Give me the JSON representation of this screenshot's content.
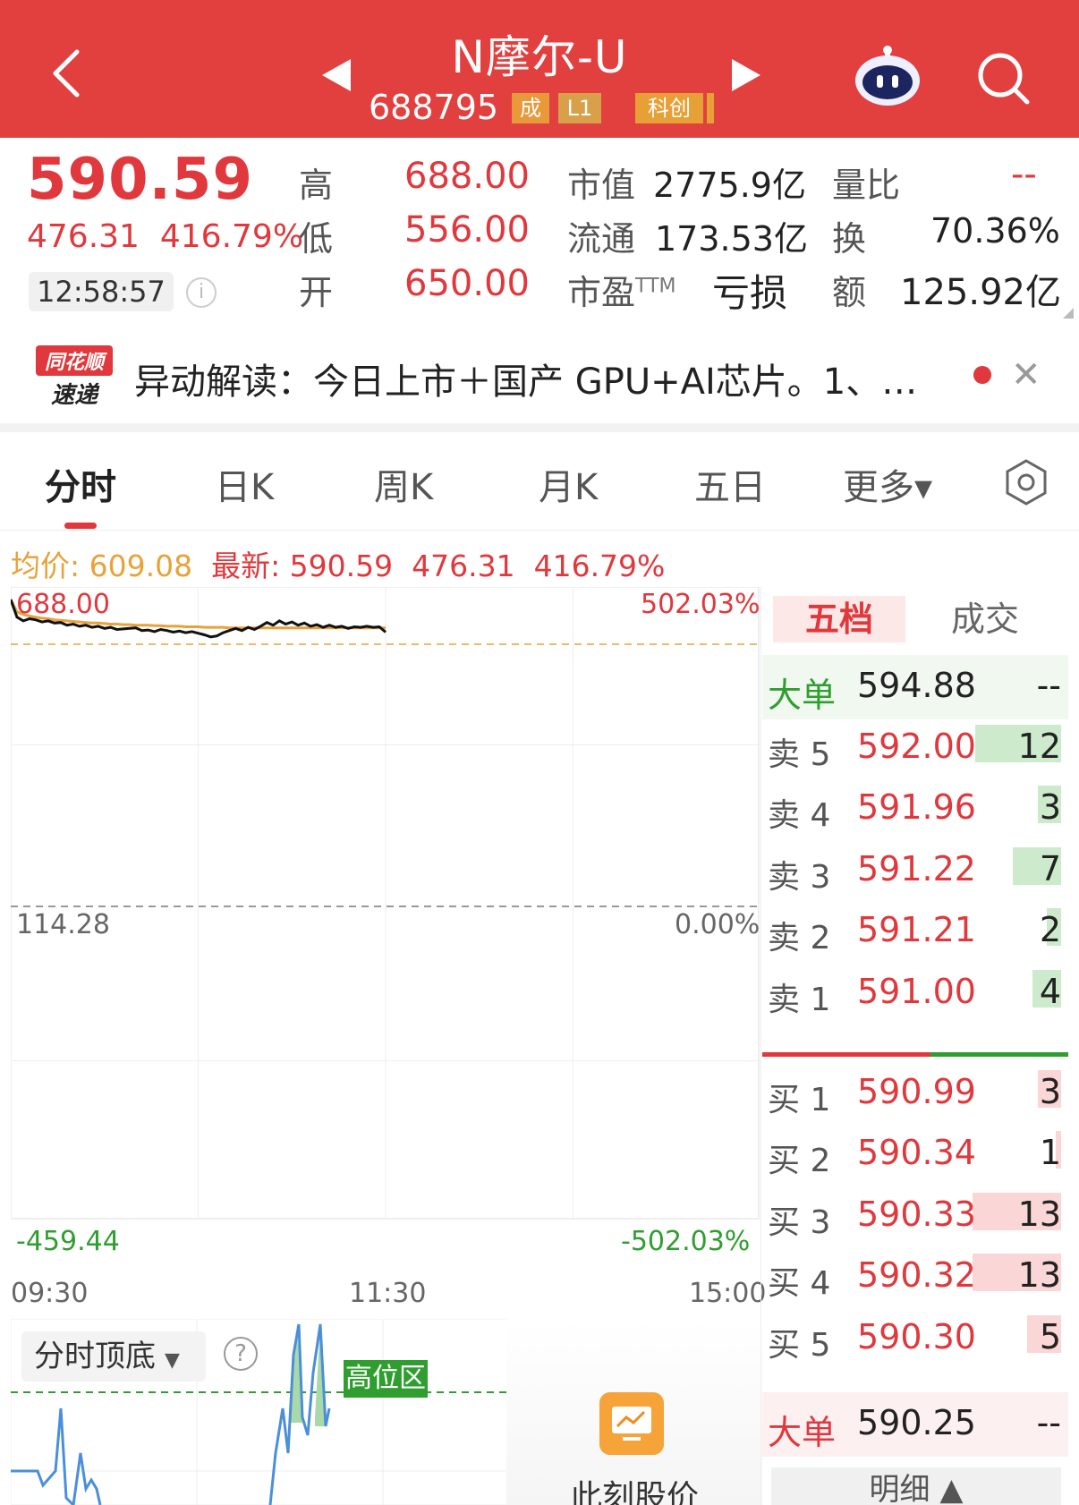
{
  "header": {
    "title": "N摩尔-U",
    "code": "688795",
    "badges": [
      "成",
      "L1",
      "科创"
    ]
  },
  "quote": {
    "price": "590.59",
    "change": "476.31",
    "change_pct": "416.79%",
    "time": "12:58:57",
    "high_label": "高",
    "high": "688.00",
    "low_label": "低",
    "low": "556.00",
    "open_label": "开",
    "open": "650.00",
    "mcap_label": "市值",
    "mcap": "2775.9亿",
    "float_label": "流通",
    "float": "173.53亿",
    "pe_label": "市盈",
    "pe_sup": "TTM",
    "pe": "亏损",
    "vr_label": "量比",
    "vr": "--",
    "turnover_label": "换",
    "turnover": "70.36%",
    "amount_label": "额",
    "amount": "125.92亿"
  },
  "news": {
    "logo_top": "同花顺",
    "logo_bottom": "速递",
    "text": "异动解读：今日上市＋国产 GPU+AI芯片。1、…"
  },
  "tabs": [
    "分时",
    "日K",
    "周K",
    "月K",
    "五日",
    "更多▾"
  ],
  "info_line": {
    "avg_label": "均价: 609.08",
    "latest_label": "最新: 590.59",
    "change": "476.31",
    "pct": "416.79%"
  },
  "chart_data": {
    "type": "line",
    "x_ticks": [
      "09:30",
      "11:30",
      "15:00"
    ],
    "y_left_ticks": [
      "688.00",
      "114.28",
      "-459.44"
    ],
    "y_right_ticks": [
      "502.03%",
      "0.00%",
      "-502.03%"
    ],
    "ylim": [
      -459.44,
      688.0
    ],
    "prev_close": 114.28,
    "series": [
      {
        "values": [
          688.0,
          655,
          648,
          652,
          650,
          646,
          648,
          644,
          645,
          640,
          642,
          638,
          640,
          636,
          638,
          634,
          636,
          632,
          633,
          634,
          635,
          630,
          631,
          628,
          632,
          630,
          627,
          629,
          626,
          628,
          625,
          622,
          618,
          620,
          626,
          630,
          634,
          630,
          636,
          632,
          638,
          645,
          640,
          648,
          642,
          646,
          640,
          644,
          638,
          641,
          636,
          640,
          636,
          638,
          634,
          637,
          636,
          638,
          636,
          637,
          590.59
        ]
      },
      {
        "values": [
          688.0,
          665,
          660,
          657,
          655,
          653,
          652,
          650,
          649,
          648,
          647,
          646,
          645,
          644,
          644,
          643,
          642,
          642,
          641,
          641,
          640,
          640,
          640,
          639,
          639,
          638,
          638,
          638,
          637,
          637,
          637,
          636,
          636,
          636,
          636,
          635,
          635,
          635,
          635,
          635,
          635,
          635,
          635,
          635,
          635,
          635,
          635,
          635,
          635,
          635,
          635,
          635,
          635,
          635,
          635,
          635,
          635,
          635,
          635,
          635,
          609.08
        ]
      }
    ]
  },
  "indicator": {
    "name": "分时顶底",
    "help": "?",
    "zone_label": "高位区"
  },
  "promo": {
    "text": "此刻股价"
  },
  "orderbook": {
    "tab_active": "五档",
    "tab_other": "成交",
    "top_big": {
      "label": "大单",
      "price": "594.88",
      "vol": "--"
    },
    "sells": [
      {
        "label": "卖 5",
        "price": "592.00",
        "vol": "12",
        "bar": 0.3
      },
      {
        "label": "卖 4",
        "price": "591.96",
        "vol": "3",
        "bar": 0.08
      },
      {
        "label": "卖 3",
        "price": "591.22",
        "vol": "7",
        "bar": 0.17
      },
      {
        "label": "卖 2",
        "price": "591.21",
        "vol": "2",
        "bar": 0.05
      },
      {
        "label": "卖 1",
        "price": "591.00",
        "vol": "4",
        "bar": 0.1
      }
    ],
    "buys": [
      {
        "label": "买 1",
        "price": "590.99",
        "vol": "3",
        "bar": 0.08
      },
      {
        "label": "买 2",
        "price": "590.34",
        "vol": "1",
        "bar": 0.02
      },
      {
        "label": "买 3",
        "price": "590.33",
        "vol": "13",
        "bar": 0.31
      },
      {
        "label": "买 4",
        "price": "590.32",
        "vol": "13",
        "bar": 0.31
      },
      {
        "label": "买 5",
        "price": "590.30",
        "vol": "5",
        "bar": 0.12
      }
    ],
    "bottom_big": {
      "label": "大单",
      "price": "590.25",
      "vol": "--"
    },
    "detail": "明细 ▲"
  }
}
